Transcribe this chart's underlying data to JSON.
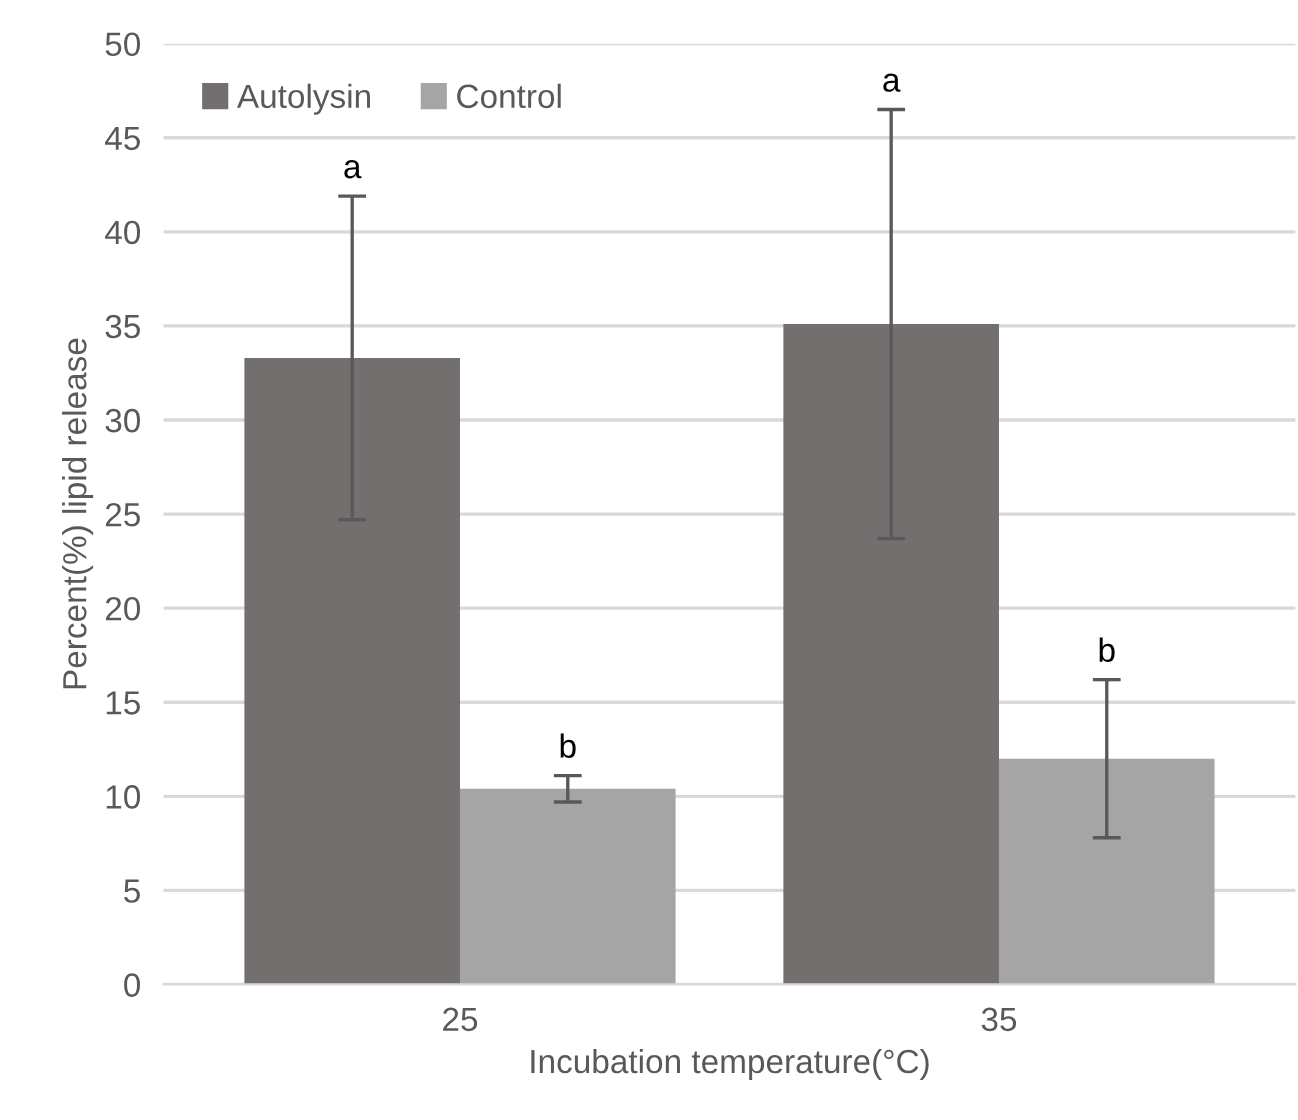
{
  "chart_data": {
    "type": "bar",
    "xlabel": "Incubation temperature(°C)",
    "ylabel": "Percent(%) lipid release",
    "categories": [
      "25",
      "35"
    ],
    "series": [
      {
        "name": "Autolysin",
        "color": "#736f6e",
        "values": [
          33.3,
          35.1
        ],
        "errors": [
          8.6,
          11.4
        ]
      },
      {
        "name": "Control",
        "color": "#a5a5a5",
        "values": [
          10.4,
          12.0
        ],
        "errors": [
          0.7,
          4.2
        ]
      }
    ],
    "ylim": [
      0,
      50
    ],
    "yticks": [
      0,
      5,
      10,
      15,
      20,
      25,
      30,
      35,
      40,
      45,
      50
    ],
    "grid": "y",
    "legend": "top left",
    "annotations": [
      "a",
      "b",
      "a",
      "b"
    ]
  }
}
